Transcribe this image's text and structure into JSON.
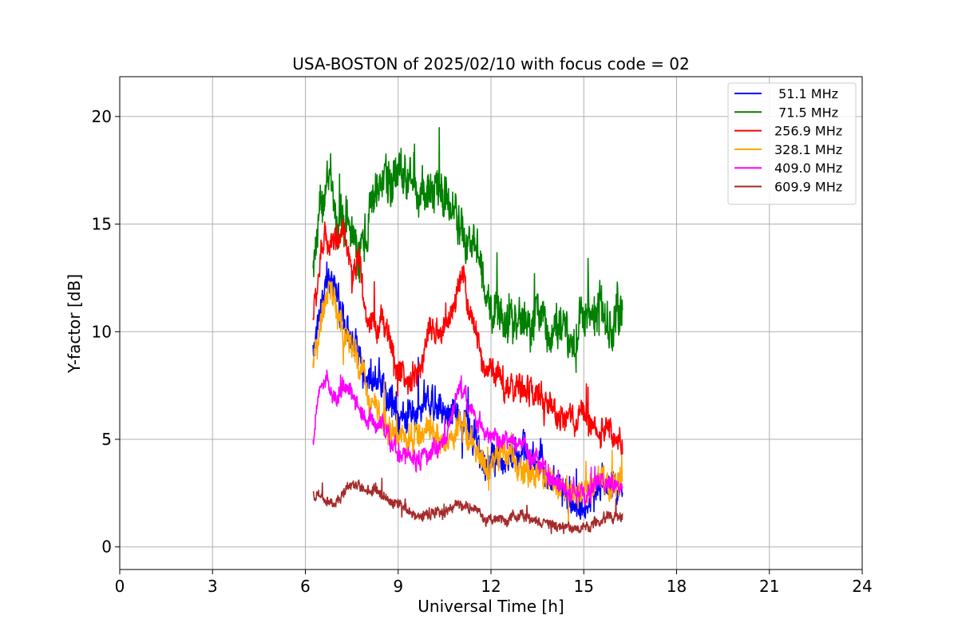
{
  "chart_data": {
    "type": "line",
    "title": "USA-BOSTON of 2025/02/10 with focus code = 02",
    "xlabel": "Universal Time [h]",
    "ylabel": "Y-factor [dB]",
    "xlim": [
      0,
      24
    ],
    "ylim": [
      -1.05,
      21.85
    ],
    "xticks": [
      0,
      3,
      6,
      9,
      12,
      15,
      18,
      21,
      24
    ],
    "yticks": [
      0,
      5,
      10,
      15,
      20
    ],
    "grid": true,
    "legend_position": "top-right",
    "series": [
      {
        "name": " 51.1 MHz",
        "color": "#0000ff",
        "x": [
          6.25,
          6.5,
          6.75,
          7.0,
          7.25,
          7.5,
          7.75,
          8.0,
          8.5,
          9.0,
          9.5,
          10.0,
          10.5,
          11.0,
          11.5,
          11.75,
          12.0,
          12.5,
          13.0,
          13.5,
          14.0,
          14.5,
          15.0,
          15.5,
          16.0,
          16.25
        ],
        "y": [
          9.0,
          11.5,
          12.5,
          11.5,
          10.5,
          10.0,
          9.0,
          7.5,
          7.5,
          6.0,
          6.5,
          7.0,
          6.5,
          6.5,
          5.0,
          3.5,
          4.0,
          4.5,
          4.5,
          4.0,
          3.0,
          2.5,
          1.5,
          3.0,
          2.5,
          2.5
        ],
        "noise": 1.0
      },
      {
        "name": " 71.5 MHz",
        "color": "#008000",
        "x": [
          6.25,
          6.5,
          6.75,
          7.0,
          7.25,
          7.5,
          7.75,
          8.0,
          8.5,
          9.0,
          9.5,
          10.0,
          10.5,
          11.0,
          11.5,
          11.75,
          12.0,
          12.5,
          13.0,
          13.5,
          14.0,
          14.5,
          15.0,
          15.5,
          16.0,
          16.25
        ],
        "y": [
          13.0,
          16.0,
          17.0,
          15.0,
          14.5,
          15.0,
          13.5,
          15.5,
          17.0,
          17.5,
          16.5,
          17.0,
          16.5,
          15.0,
          13.5,
          12.5,
          11.0,
          10.5,
          10.5,
          10.5,
          10.0,
          10.0,
          10.5,
          11.0,
          10.5,
          10.0
        ],
        "noise": 1.5
      },
      {
        "name": "256.9 MHz",
        "color": "#ff0000",
        "x": [
          6.25,
          6.5,
          6.75,
          7.0,
          7.25,
          7.5,
          7.75,
          8.0,
          8.5,
          9.0,
          9.5,
          10.0,
          10.5,
          11.0,
          11.5,
          11.75,
          12.0,
          12.5,
          13.0,
          13.5,
          14.0,
          14.5,
          15.0,
          15.5,
          16.0,
          16.25
        ],
        "y": [
          10.5,
          13.5,
          14.5,
          14.0,
          15.0,
          12.0,
          13.5,
          10.5,
          10.5,
          8.0,
          7.5,
          10.0,
          10.0,
          12.5,
          10.0,
          8.5,
          8.0,
          7.5,
          7.5,
          7.0,
          6.0,
          6.0,
          6.0,
          5.5,
          5.0,
          4.5
        ],
        "noise": 0.9
      },
      {
        "name": "328.1 MHz",
        "color": "#ffa500",
        "x": [
          6.25,
          6.5,
          6.75,
          7.0,
          7.25,
          7.5,
          7.75,
          8.0,
          8.5,
          9.0,
          9.5,
          10.0,
          10.5,
          11.0,
          11.5,
          11.75,
          12.0,
          12.5,
          13.0,
          13.5,
          14.0,
          14.5,
          15.0,
          15.5,
          16.0,
          16.25
        ],
        "y": [
          8.0,
          10.0,
          12.0,
          11.0,
          10.0,
          9.5,
          8.5,
          7.0,
          6.0,
          5.0,
          5.0,
          5.5,
          5.0,
          5.5,
          4.5,
          4.0,
          4.0,
          4.0,
          3.5,
          3.5,
          3.0,
          2.5,
          2.5,
          3.0,
          3.0,
          3.0
        ],
        "noise": 0.9
      },
      {
        "name": "409.0 MHz",
        "color": "#ff00ff",
        "x": [
          6.25,
          6.5,
          6.75,
          7.0,
          7.25,
          7.5,
          7.75,
          8.0,
          8.5,
          9.0,
          9.5,
          10.0,
          10.5,
          11.0,
          11.5,
          11.75,
          12.0,
          12.5,
          13.0,
          13.5,
          14.0,
          14.5,
          15.0,
          15.5,
          16.0,
          16.25
        ],
        "y": [
          5.0,
          7.5,
          7.5,
          7.0,
          7.5,
          7.0,
          6.5,
          6.0,
          5.5,
          4.5,
          4.0,
          4.5,
          5.0,
          7.5,
          6.0,
          5.5,
          5.0,
          5.0,
          4.5,
          4.0,
          3.0,
          2.5,
          2.5,
          3.0,
          3.0,
          3.0
        ],
        "noise": 0.6
      },
      {
        "name": "609.9 MHz",
        "color": "#a52a2a",
        "x": [
          6.25,
          6.5,
          6.75,
          7.0,
          7.25,
          7.5,
          7.75,
          8.0,
          8.5,
          9.0,
          9.5,
          10.0,
          10.5,
          11.0,
          11.5,
          11.75,
          12.0,
          12.5,
          13.0,
          13.5,
          14.0,
          14.5,
          15.0,
          15.5,
          16.0,
          16.25
        ],
        "y": [
          2.5,
          2.2,
          2.0,
          2.0,
          2.5,
          3.0,
          2.8,
          2.7,
          2.5,
          2.0,
          1.5,
          1.5,
          1.8,
          2.0,
          1.8,
          1.3,
          1.3,
          1.3,
          1.5,
          1.2,
          1.0,
          0.8,
          0.8,
          1.2,
          1.5,
          1.5
        ],
        "noise": 0.35
      }
    ]
  }
}
